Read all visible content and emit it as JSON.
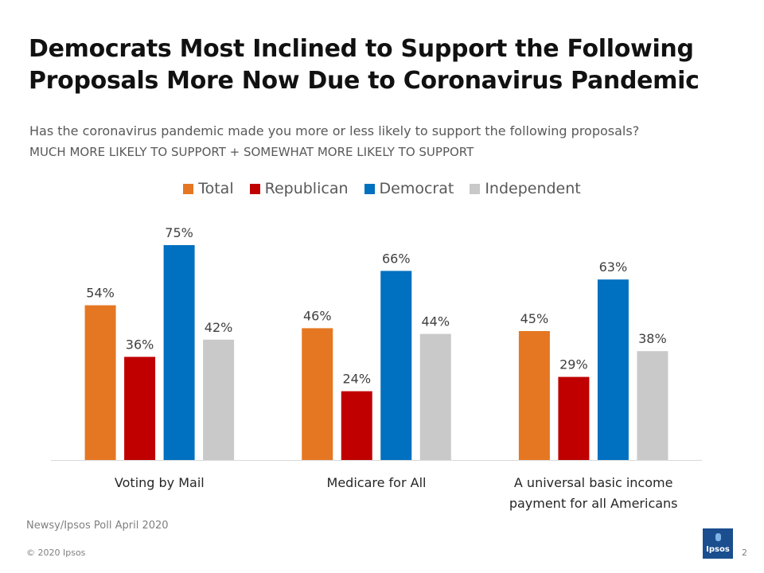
{
  "header": {
    "title_line1": "Democrats Most Inclined to Support the Following",
    "title_line2": "Proposals More Now Due to Coronavirus Pandemic",
    "question": "Has the coronavirus pandemic made you more or less likely to support the following proposals?",
    "measure": "MUCH MORE LIKELY TO SUPPORT + SOMEWHAT MORE LIKELY TO SUPPORT"
  },
  "colors": {
    "Total": "#e57722",
    "Republican": "#c00000",
    "Democrat": "#0070c0",
    "Independent": "#c9c9c9"
  },
  "chart_data": {
    "type": "bar",
    "title": "Democrats Most Inclined to Support the Following Proposals More Now Due to Coronavirus Pandemic",
    "categories": [
      [
        "Voting by Mail"
      ],
      [
        "Medicare for All"
      ],
      [
        "A universal basic income",
        "payment for all Americans"
      ]
    ],
    "series": [
      {
        "name": "Total",
        "values": [
          54,
          46,
          45
        ]
      },
      {
        "name": "Republican",
        "values": [
          36,
          24,
          29
        ]
      },
      {
        "name": "Democrat",
        "values": [
          75,
          66,
          63
        ]
      },
      {
        "name": "Independent",
        "values": [
          42,
          44,
          38
        ]
      }
    ],
    "value_suffix": "%",
    "ylim": [
      0,
      100
    ],
    "legend_position": "top",
    "grid": false,
    "xlabel": "",
    "ylabel": ""
  },
  "footer": {
    "source": "Newsy/Ipsos Poll April 2020",
    "copyright": "© 2020 Ipsos",
    "page_number": "2",
    "logo_text": "Ipsos"
  }
}
